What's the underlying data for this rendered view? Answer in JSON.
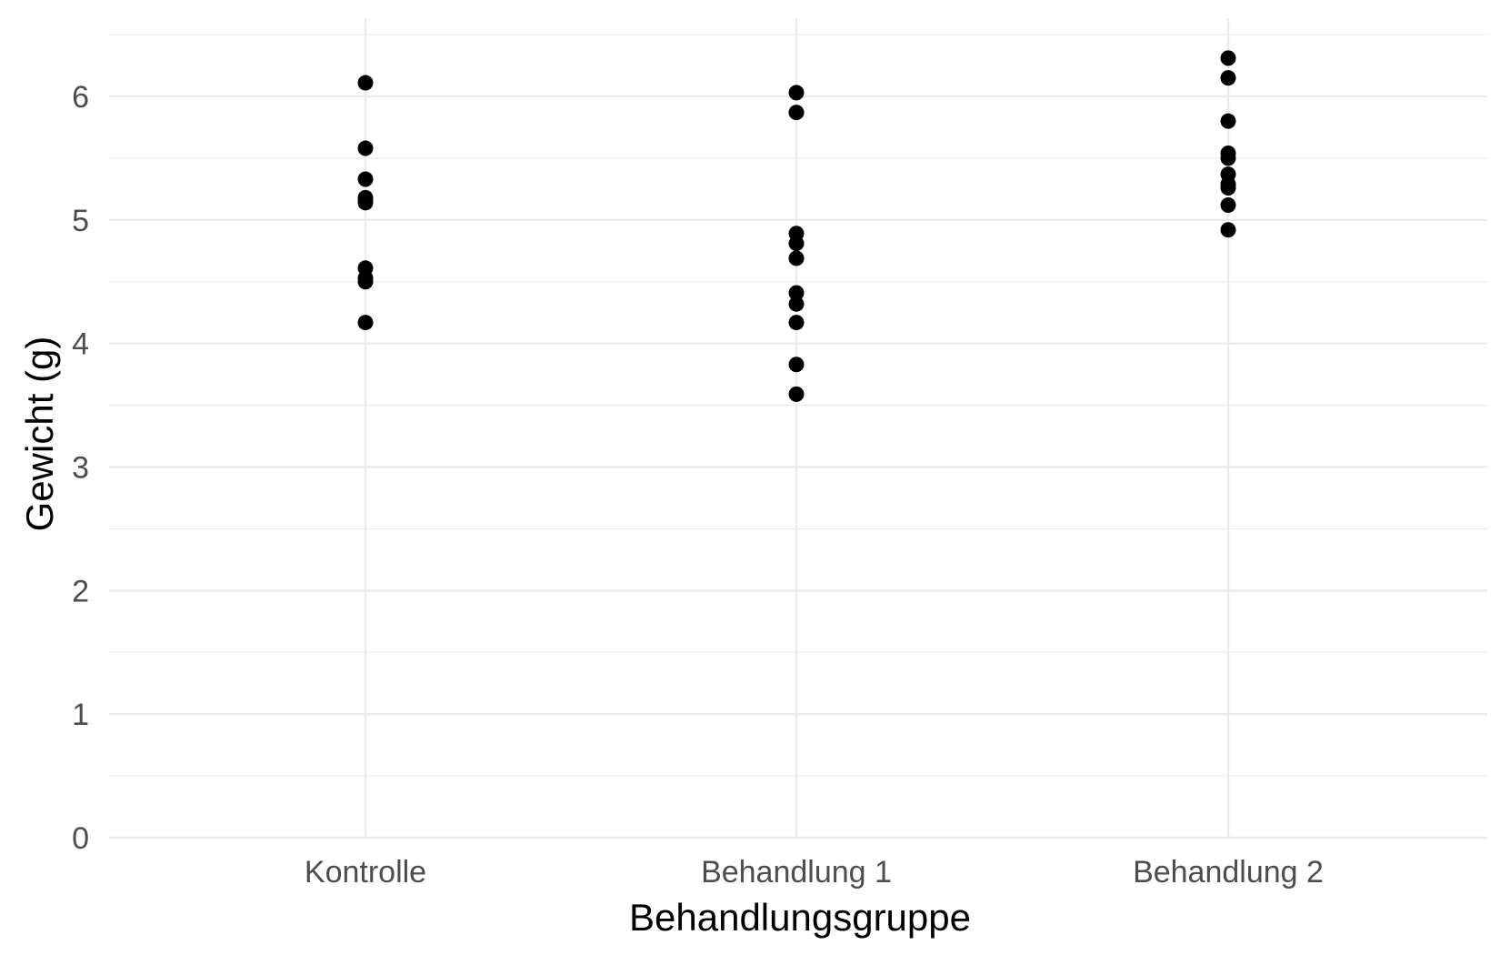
{
  "chart_data": {
    "type": "scatter",
    "title": "",
    "xlabel": "Behandlungsgruppe",
    "ylabel": "Gewicht (g)",
    "categories": [
      "Kontrolle",
      "Behandlung 1",
      "Behandlung 2"
    ],
    "ylim": [
      0,
      6.5
    ],
    "y_ticks": [
      "0",
      "1",
      "2",
      "3",
      "4",
      "5",
      "6"
    ],
    "grid": true,
    "legend": "none",
    "point_color": "#000000",
    "series": [
      {
        "category": "Kontrolle",
        "values": [
          4.17,
          4.5,
          4.53,
          4.61,
          5.14,
          5.17,
          5.18,
          5.33,
          5.58,
          6.11
        ]
      },
      {
        "category": "Behandlung 1",
        "values": [
          3.59,
          3.83,
          4.17,
          4.32,
          4.41,
          4.69,
          4.81,
          4.89,
          5.87,
          6.03
        ]
      },
      {
        "category": "Behandlung 2",
        "values": [
          4.92,
          5.12,
          5.26,
          5.29,
          5.37,
          5.5,
          5.54,
          5.8,
          6.15,
          6.31
        ]
      }
    ]
  }
}
